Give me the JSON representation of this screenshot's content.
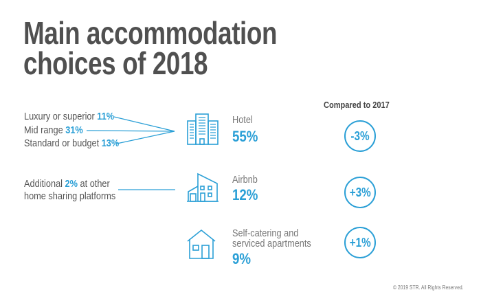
{
  "title": {
    "line1": "Main accommodation",
    "line2": "choices of 2018"
  },
  "compared_header": "Compared to 2017",
  "rows": [
    {
      "category": "Hotel",
      "share": "55%",
      "change": "-3%",
      "icon": "hotel-building-icon",
      "breakdown": [
        {
          "label": "Luxury or superior",
          "value": "11%"
        },
        {
          "label": "Mid range",
          "value": "31%"
        },
        {
          "label": "Standard or budget",
          "value": "13%"
        }
      ]
    },
    {
      "category": "Airbnb",
      "share": "12%",
      "change": "+3%",
      "icon": "modern-house-icon",
      "note": {
        "prefix": "Additional",
        "value": "2%",
        "suffix": "at other",
        "line2": "home sharing platforms"
      }
    },
    {
      "category_line1": "Self-catering and",
      "category_line2": "serviced apartments",
      "share": "9%",
      "change": "+1%",
      "icon": "house-icon"
    }
  ],
  "copyright": "© 2019 STR. All Rights Reserved.",
  "colors": {
    "accent": "#2a9fd6",
    "title": "#505050",
    "text": "#555555"
  }
}
